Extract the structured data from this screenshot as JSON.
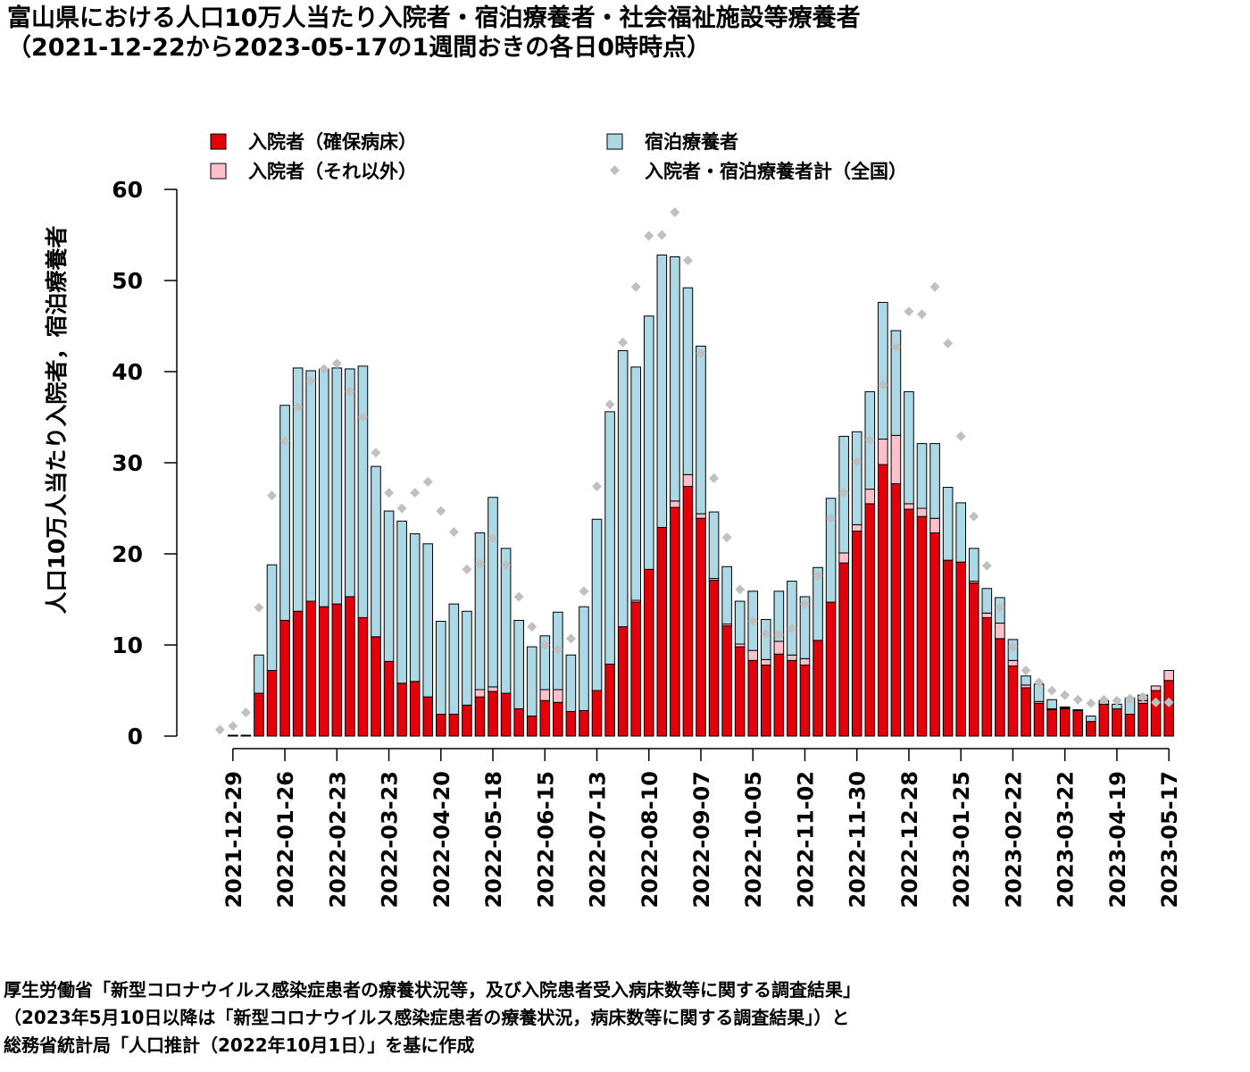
{
  "title": {
    "line1": "富山県における人口10万人当たり入院者・宿泊療養者・社会福祉施設等療養者",
    "line2": "（2021-12-22から2023-05-17の1週間おきの各日0時時点）"
  },
  "source_note": {
    "line1": "厚生労働省「新型コロナウイルス感染症患者の療養状況等，及び入院患者受入病床数等に関する調査結果」",
    "line2": "（2023年5月10日以降は「新型コロナウイルス感染症患者の療養状況，病床数等に関する調査結果」）と",
    "line3": "総務省統計局「人口推計（2022年10月1日）」を基に作成"
  },
  "chart_data": {
    "type": "bar",
    "stacked": true,
    "ylabel": "人口10万人当たり入院者，宿泊療養者",
    "ylim": [
      0,
      60
    ],
    "yticks": [
      0,
      10,
      20,
      30,
      40,
      50,
      60
    ],
    "x_tick_labels": [
      "2021-12-29",
      "2022-01-26",
      "2022-02-23",
      "2022-03-23",
      "2022-04-20",
      "2022-05-18",
      "2022-06-15",
      "2022-07-13",
      "2022-08-10",
      "2022-09-07",
      "2022-10-05",
      "2022-11-02",
      "2022-11-30",
      "2022-12-28",
      "2023-01-25",
      "2023-02-22",
      "2023-03-22",
      "2023-04-19",
      "2023-05-17"
    ],
    "x_tick_every": 4,
    "x_tick_offset": 1,
    "legend_position": "top",
    "categories": [
      "2021-12-22",
      "2021-12-29",
      "2022-01-05",
      "2022-01-12",
      "2022-01-19",
      "2022-01-26",
      "2022-02-02",
      "2022-02-09",
      "2022-02-16",
      "2022-02-23",
      "2022-03-02",
      "2022-03-09",
      "2022-03-16",
      "2022-03-23",
      "2022-03-30",
      "2022-04-06",
      "2022-04-13",
      "2022-04-20",
      "2022-04-27",
      "2022-05-04",
      "2022-05-11",
      "2022-05-18",
      "2022-05-25",
      "2022-06-01",
      "2022-06-08",
      "2022-06-15",
      "2022-06-22",
      "2022-06-29",
      "2022-07-06",
      "2022-07-13",
      "2022-07-20",
      "2022-07-27",
      "2022-08-03",
      "2022-08-10",
      "2022-08-17",
      "2022-08-24",
      "2022-08-31",
      "2022-09-07",
      "2022-09-14",
      "2022-09-21",
      "2022-09-28",
      "2022-10-05",
      "2022-10-12",
      "2022-10-19",
      "2022-10-26",
      "2022-11-02",
      "2022-11-09",
      "2022-11-16",
      "2022-11-23",
      "2022-11-30",
      "2022-12-07",
      "2022-12-14",
      "2022-12-21",
      "2022-12-28",
      "2023-01-04",
      "2023-01-11",
      "2023-01-18",
      "2023-01-25",
      "2023-02-01",
      "2023-02-08",
      "2023-02-15",
      "2023-02-22",
      "2023-03-01",
      "2023-03-08",
      "2023-03-15",
      "2023-03-22",
      "2023-03-29",
      "2023-04-05",
      "2023-04-12",
      "2023-04-19",
      "2023-04-26",
      "2023-05-03",
      "2023-05-10",
      "2023-05-17"
    ],
    "series": [
      {
        "name": "入院者（確保病床）",
        "color": "#e3000b",
        "values": [
          0,
          0.1,
          0.1,
          4.7,
          7.2,
          12.7,
          13.7,
          14.8,
          14.2,
          14.5,
          15.3,
          13.0,
          10.9,
          8.2,
          5.8,
          6.0,
          4.3,
          2.4,
          2.4,
          3.4,
          4.3,
          4.9,
          4.7,
          3.0,
          2.2,
          3.9,
          3.7,
          2.7,
          2.8,
          5.0,
          7.9,
          12.0,
          14.7,
          18.3,
          22.9,
          25.1,
          27.4,
          23.9,
          17.1,
          12.1,
          9.8,
          8.3,
          7.8,
          9.0,
          8.3,
          7.8,
          10.5,
          14.7,
          19.0,
          22.5,
          25.5,
          29.8,
          27.7,
          24.9,
          24.1,
          22.3,
          19.3,
          19.1,
          16.8,
          13.0,
          10.7,
          7.7,
          5.3,
          3.6,
          2.9,
          3.0,
          2.8,
          1.6,
          3.5,
          3.0,
          2.4,
          3.6,
          5.0,
          6.1
        ]
      },
      {
        "name": "入院者（それ以外）",
        "color": "#ffc0cb",
        "values": [
          0,
          0,
          0,
          0,
          0,
          0,
          0,
          0,
          0,
          0,
          0,
          0,
          0,
          0,
          0,
          0,
          0,
          0,
          0,
          0,
          0.8,
          0.5,
          0,
          0,
          0,
          1.2,
          1.4,
          0,
          0,
          0,
          0,
          0,
          0.2,
          0,
          0,
          0.7,
          1.3,
          0.5,
          0.2,
          0.2,
          0.3,
          1.1,
          0.6,
          1.4,
          0.6,
          0.7,
          0,
          0,
          1.1,
          0.7,
          1.6,
          2.8,
          5.3,
          0.6,
          0.9,
          1.6,
          0,
          0,
          0.2,
          0.5,
          1.7,
          0.6,
          0.3,
          0.2,
          0.1,
          0.1,
          0,
          0,
          0,
          0,
          0,
          0.3,
          0.5,
          1.1
        ]
      },
      {
        "name": "宿泊療養者",
        "color": "#add8e6",
        "values": [
          0,
          0,
          0,
          4.2,
          11.6,
          23.6,
          26.7,
          25.3,
          26.1,
          25.9,
          25.0,
          27.6,
          18.7,
          16.5,
          17.8,
          16.2,
          16.8,
          10.2,
          12.1,
          10.3,
          17.2,
          20.8,
          15.9,
          9.7,
          7.6,
          5.9,
          8.5,
          6.2,
          11.4,
          18.8,
          27.7,
          30.3,
          25.6,
          27.8,
          29.9,
          26.8,
          20.5,
          18.4,
          7.3,
          6.3,
          4.7,
          6.5,
          4.4,
          5.5,
          8.1,
          6.8,
          8.0,
          11.4,
          12.8,
          10.2,
          10.7,
          15.0,
          11.5,
          12.3,
          7.1,
          8.2,
          8.0,
          6.5,
          3.6,
          2.7,
          2.8,
          2.3,
          1.0,
          1.9,
          1.0,
          0.1,
          0.1,
          0.6,
          0.4,
          0.5,
          1.8,
          0.6,
          0,
          0
        ]
      }
    ],
    "national_total": {
      "name": "入院者・宿泊療養者計（全国）",
      "color": "#c0c0c0",
      "values": [
        0.7,
        1.1,
        2.6,
        14.1,
        26.4,
        32.4,
        36.1,
        39.0,
        40.3,
        40.9,
        37.8,
        35.0,
        31.1,
        26.7,
        25.0,
        26.7,
        27.9,
        24.7,
        22.4,
        18.3,
        18.9,
        21.7,
        18.8,
        15.3,
        12.0,
        10.0,
        9.5,
        10.7,
        15.9,
        27.4,
        36.4,
        43.2,
        49.3,
        54.9,
        55.0,
        57.5,
        52.2,
        42.0,
        28.3,
        21.8,
        16.1,
        12.6,
        11.2,
        11.1,
        11.8,
        14.5,
        17.6,
        23.9,
        26.7,
        30.1,
        32.5,
        38.5,
        42.7,
        46.6,
        46.3,
        49.3,
        43.1,
        32.9,
        24.1,
        18.7,
        14.1,
        9.8,
        7.2,
        5.9,
        5.0,
        4.5,
        4.0,
        3.6,
        4.0,
        3.9,
        4.1,
        4.3,
        3.7,
        3.7
      ]
    }
  }
}
